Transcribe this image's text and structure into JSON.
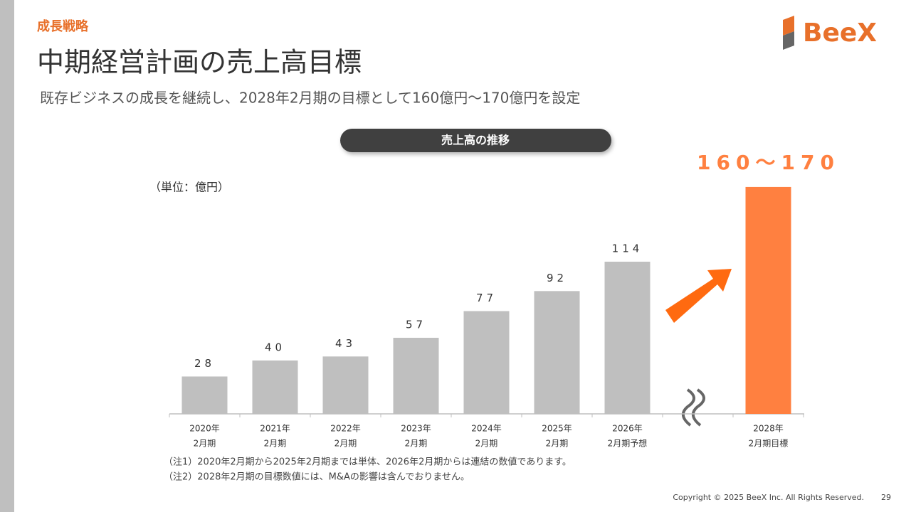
{
  "section": "成長戦略",
  "title": "中期経営計画の売上高目標",
  "subtitle": "既存ビジネスの成長を継続し、2028年2月期の目標として160億円～170億円を設定",
  "logo": "BeeX",
  "chart_data": {
    "type": "bar",
    "title": "売上高の推移",
    "unit_label": "（単位：億円）",
    "categories": [
      [
        "2020年",
        "2月期"
      ],
      [
        "2021年",
        "2月期"
      ],
      [
        "2022年",
        "2月期"
      ],
      [
        "2023年",
        "2月期"
      ],
      [
        "2024年",
        "2月期"
      ],
      [
        "2025年",
        "2月期"
      ],
      [
        "2026年",
        "2月期予想"
      ],
      null,
      [
        "2028年",
        "2月期目標"
      ]
    ],
    "values": [
      28,
      40,
      43,
      57,
      77,
      92,
      114,
      null,
      170
    ],
    "value_labels": [
      null,
      null,
      null,
      null,
      null,
      null,
      null,
      null,
      "160～170"
    ],
    "colors": [
      "#bfbfbf",
      "#bfbfbf",
      "#bfbfbf",
      "#bfbfbf",
      "#bfbfbf",
      "#bfbfbf",
      "#bfbfbf",
      null,
      "#ff8040"
    ]
  },
  "notes": [
    "（注1）2020年2月期から2025年2月期までは単体、2026年2月期からは連結の数値であります。",
    "（注2）2028年2月期の目標数値には、M&Aの影響は含んでおりません。"
  ],
  "footer": {
    "copyright": "Copyright © 2025 BeeX Inc. All Rights Reserved.",
    "page": "29"
  }
}
